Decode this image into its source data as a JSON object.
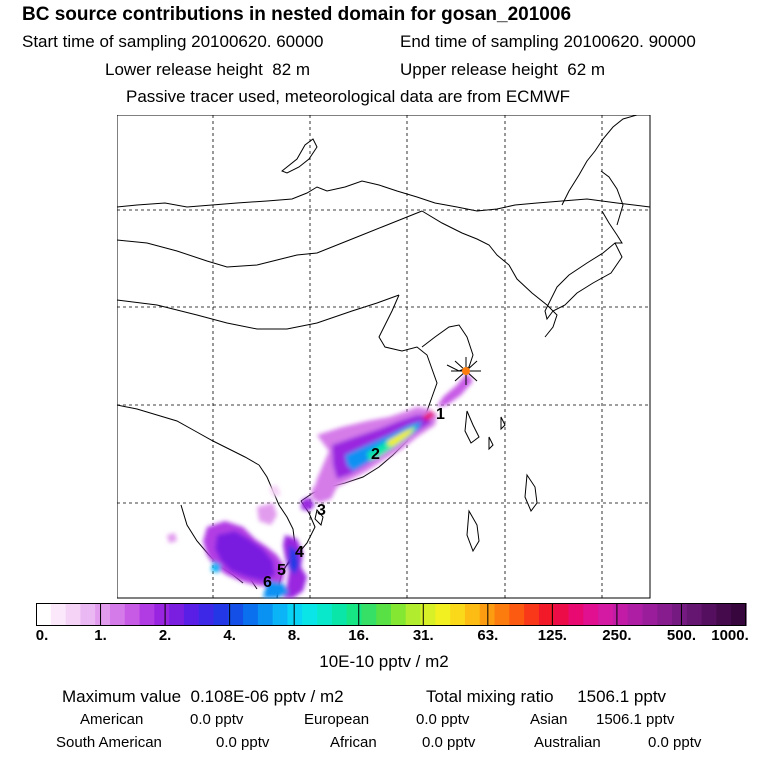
{
  "title": "BC  source contributions in nested domain for gosan_201006",
  "sampling": {
    "start_label": "Start time of sampling",
    "start_value": "20100620. 60000",
    "end_label": "End time of sampling",
    "end_value": "20100620. 90000"
  },
  "release": {
    "lower_label": "Lower release height",
    "lower_value": "82 m",
    "upper_label": "Upper release height",
    "upper_value": "62 m"
  },
  "note": "Passive tracer used, meteorological data are from ECMWF",
  "map": {
    "receptor_marker": "star-icon",
    "region_labels": [
      "1",
      "2",
      "3",
      "4",
      "5",
      "6"
    ]
  },
  "colorbar": {
    "ticks": [
      "0.",
      "1.",
      "2.",
      "4.",
      "8.",
      "16.",
      "31.",
      "63.",
      "125.",
      "250.",
      "500.",
      "1000."
    ],
    "unit": "10E-10 pptv / m2",
    "colors": [
      "#ffffff",
      "#fbe8fb",
      "#f5d3f7",
      "#eab8f2",
      "#e29cee",
      "#d57be9",
      "#c85be6",
      "#b23ce4",
      "#9a25e0",
      "#7a1ee0",
      "#5a1fe6",
      "#3d28e8",
      "#2337e6",
      "#1450e8",
      "#0a70ee",
      "#0a92f3",
      "#0ab4f6",
      "#0ad4f6",
      "#0ae6e8",
      "#0ae8cc",
      "#0ae6a8",
      "#16e684",
      "#36e066",
      "#58e044",
      "#84e832",
      "#b2ec2e",
      "#d8f028",
      "#f2f020",
      "#fad81a",
      "#fcbc14",
      "#fc9c10",
      "#fc7c0e",
      "#fb5a10",
      "#f83818",
      "#f21a28",
      "#ec0c48",
      "#e80a70",
      "#e01090",
      "#d41aa2",
      "#c21ca6",
      "#ae1ea4",
      "#9a1e9c",
      "#861c8e",
      "#741a80",
      "#641670",
      "#540f5e",
      "#440a4c",
      "#36063c"
    ]
  },
  "stats": {
    "max_label": "Maximum value",
    "max_value": "0.108E-06 pptv / m2",
    "total_label": "Total mixing ratio",
    "total_value": "1506.1 pptv"
  },
  "contributions": [
    {
      "region": "American",
      "value": "0.0 pptv"
    },
    {
      "region": "European",
      "value": "0.0 pptv"
    },
    {
      "region": "Asian",
      "value": "1506.1 pptv"
    },
    {
      "region": "South American",
      "value": "0.0 pptv"
    },
    {
      "region": "African",
      "value": "0.0 pptv"
    },
    {
      "region": "Australian",
      "value": "0.0 pptv"
    }
  ]
}
